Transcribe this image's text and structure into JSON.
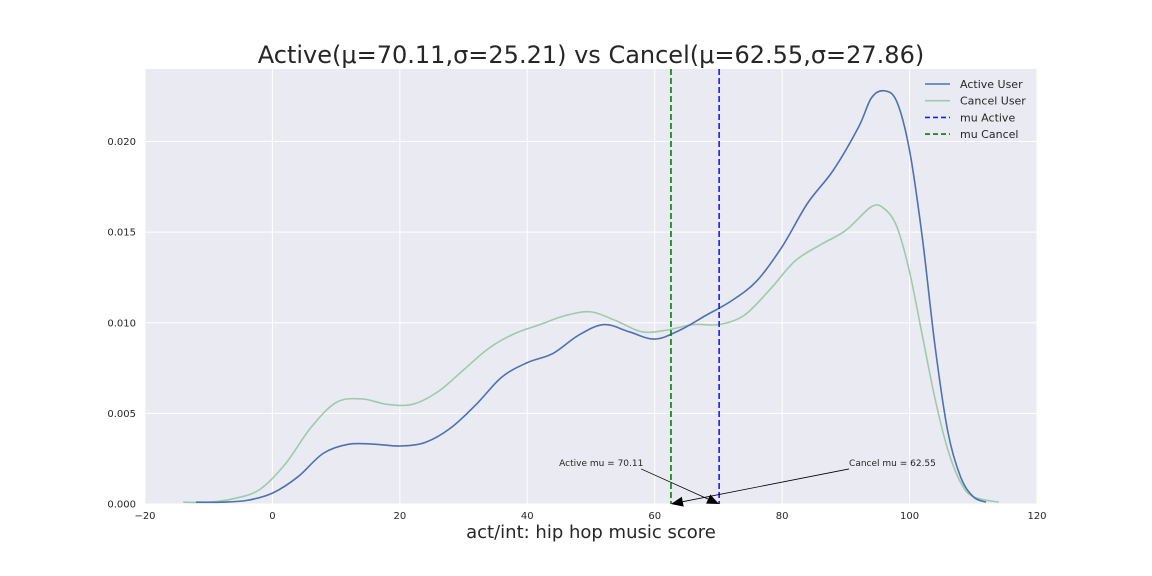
{
  "chart_data": {
    "type": "line",
    "title": "Active(μ=70.11,σ=25.21) vs Cancel(μ=62.55,σ=27.86)",
    "xlabel": "act/int: hip hop music score",
    "ylabel": "",
    "xlim": [
      -20,
      120
    ],
    "ylim": [
      0,
      0.024
    ],
    "xticks": [
      -20,
      0,
      20,
      40,
      60,
      80,
      100,
      120
    ],
    "xtick_labels": [
      "−20",
      "0",
      "20",
      "40",
      "60",
      "80",
      "100",
      "120"
    ],
    "yticks": [
      0,
      0.005,
      0.01,
      0.015,
      0.02
    ],
    "ytick_labels": [
      "0.000",
      "0.005",
      "0.010",
      "0.015",
      "0.020"
    ],
    "grid": true,
    "legend_position": "top-right",
    "series": [
      {
        "name": "Active User",
        "color": "#4c72b0",
        "x": [
          -12,
          -8,
          -4,
          0,
          4,
          8,
          12,
          16,
          20,
          24,
          28,
          32,
          36,
          40,
          44,
          48,
          52,
          56,
          60,
          64,
          68,
          72,
          76,
          80,
          84,
          88,
          92,
          94,
          96,
          98,
          100,
          102,
          104,
          106,
          108,
          110,
          112
        ],
        "y": [
          0.0001,
          0.0001,
          0.0002,
          0.0006,
          0.0015,
          0.0028,
          0.0033,
          0.0033,
          0.0032,
          0.0034,
          0.0042,
          0.0055,
          0.007,
          0.0078,
          0.0083,
          0.0093,
          0.0099,
          0.0095,
          0.0091,
          0.0096,
          0.0104,
          0.0112,
          0.0123,
          0.0142,
          0.0166,
          0.0184,
          0.0208,
          0.0224,
          0.0228,
          0.0222,
          0.0195,
          0.0147,
          0.0087,
          0.004,
          0.0015,
          0.0004,
          0.0001
        ]
      },
      {
        "name": "Cancel User",
        "color": "#9dcbaa",
        "x": [
          -14,
          -10,
          -6,
          -2,
          2,
          6,
          10,
          14,
          18,
          22,
          26,
          30,
          34,
          38,
          42,
          46,
          50,
          54,
          58,
          62,
          66,
          70,
          74,
          78,
          82,
          86,
          90,
          94,
          96,
          98,
          100,
          102,
          104,
          106,
          108,
          110,
          114
        ],
        "y": [
          0.0001,
          0.0001,
          0.0003,
          0.0008,
          0.0022,
          0.0042,
          0.0056,
          0.0058,
          0.0055,
          0.0055,
          0.0062,
          0.0074,
          0.0086,
          0.0094,
          0.0099,
          0.0104,
          0.0106,
          0.0101,
          0.0095,
          0.0096,
          0.0099,
          0.0099,
          0.0104,
          0.0118,
          0.0134,
          0.0143,
          0.0151,
          0.0164,
          0.0163,
          0.0153,
          0.0128,
          0.0093,
          0.0058,
          0.003,
          0.0012,
          0.0004,
          0.0001
        ]
      }
    ],
    "vlines": [
      {
        "name": "mu Active",
        "x": 70.11,
        "color": "#1a1aff"
      },
      {
        "name": "mu Cancel",
        "x": 62.55,
        "color": "#008000"
      }
    ],
    "annotations": [
      {
        "text": "Active mu = 70.11",
        "text_x": 45,
        "text_y": 0.0021,
        "point_x": 70.11,
        "point_y": 0
      },
      {
        "text": "Cancel mu = 62.55",
        "text_x": 90.5,
        "text_y": 0.0021,
        "point_x": 62.55,
        "point_y": 0
      }
    ],
    "legend": [
      "Active User",
      "Cancel User",
      "mu Active",
      "mu Cancel"
    ]
  }
}
